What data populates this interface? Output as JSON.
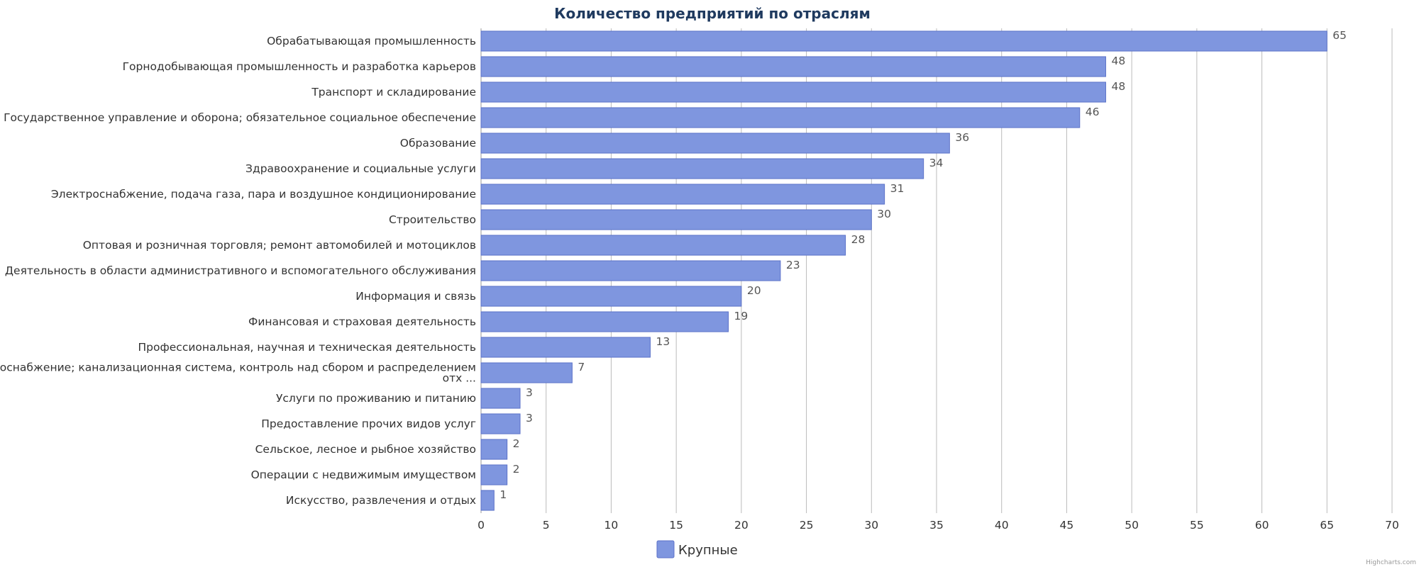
{
  "chart_data": {
    "type": "bar",
    "orientation": "horizontal",
    "title": "Количество предприятий по отраслям",
    "categories": [
      [
        "Обрабатывающая промышленность"
      ],
      [
        "Горнодобывающая промышленность и разработка карьеров"
      ],
      [
        "Транспорт и складирование"
      ],
      [
        "Государственное управление и оборона; обязательное социальное обеспечение"
      ],
      [
        "Образование"
      ],
      [
        "Здравоохранение и социальные услуги"
      ],
      [
        "Электроснабжение, подача газа, пара и воздушное кондиционирование"
      ],
      [
        "Строительство"
      ],
      [
        "Оптовая и розничная торговля; ремонт автомобилей и мотоциклов"
      ],
      [
        "Деятельность в области административного и вспомогательного обслуживания"
      ],
      [
        "Информация и связь"
      ],
      [
        "Финансовая и страховая деятельность"
      ],
      [
        "Профессиональная, научная и техническая деятельность"
      ],
      [
        "Водоснабжение; канализационная система, контроль над сбором и распределением",
        "отх ..."
      ],
      [
        "Услуги по проживанию и питанию"
      ],
      [
        "Предоставление прочих видов услуг"
      ],
      [
        "Сельское, лесное и рыбное хозяйство"
      ],
      [
        "Операции с недвижимым имуществом"
      ],
      [
        "Искусство, развлечения и отдых"
      ]
    ],
    "series": [
      {
        "name": "Крупные",
        "color": "#7f96df",
        "values": [
          65,
          48,
          48,
          46,
          36,
          34,
          31,
          30,
          28,
          23,
          20,
          19,
          13,
          7,
          3,
          3,
          2,
          2,
          1
        ]
      }
    ],
    "xlim": [
      0,
      70
    ],
    "xticks": [
      0,
      5,
      10,
      15,
      20,
      25,
      30,
      35,
      40,
      45,
      50,
      55,
      60,
      65,
      70
    ],
    "grid": true,
    "legend": "bottom-center",
    "colors": {
      "bar": "#7f96df",
      "bar_border": "#5c72c8",
      "grid": "#bbbbbb",
      "title": "#1f3a5f"
    }
  },
  "credits": "Highcharts.com"
}
